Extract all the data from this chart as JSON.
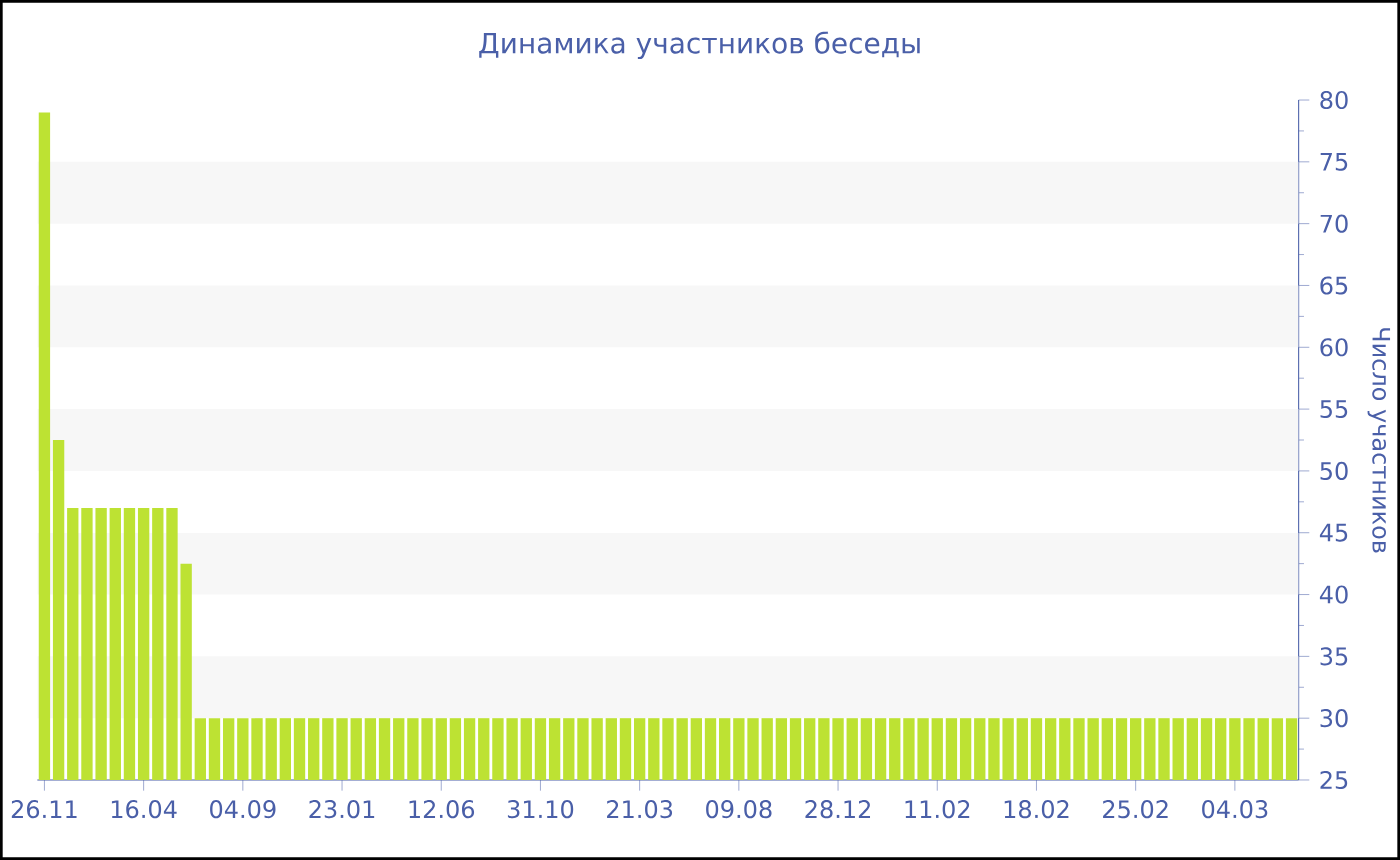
{
  "chart_data": {
    "type": "bar",
    "title": "Динамика участников беседы",
    "ylabel": "Число участников",
    "categories": [
      "26.11",
      null,
      null,
      null,
      null,
      null,
      null,
      "16.04",
      null,
      null,
      null,
      null,
      null,
      null,
      "04.09",
      null,
      null,
      null,
      null,
      null,
      null,
      "23.01",
      null,
      null,
      null,
      null,
      null,
      null,
      "12.06",
      null,
      null,
      null,
      null,
      null,
      null,
      "31.10",
      null,
      null,
      null,
      null,
      null,
      null,
      "21.03",
      null,
      null,
      null,
      null,
      null,
      null,
      "09.08",
      null,
      null,
      null,
      null,
      null,
      null,
      "28.12",
      null,
      null,
      null,
      null,
      null,
      null,
      "11.02",
      null,
      null,
      null,
      null,
      null,
      null,
      "18.02",
      null,
      null,
      null,
      null,
      null,
      null,
      "25.02",
      null,
      null,
      null,
      null,
      null,
      null,
      "04.03",
      null,
      null,
      null,
      null
    ],
    "values": [
      79,
      52.5,
      47,
      47,
      47,
      47,
      47,
      47,
      47,
      47,
      42.5,
      30,
      30,
      30,
      30,
      30,
      30,
      30,
      30,
      30,
      30,
      30,
      30,
      30,
      30,
      30,
      30,
      30,
      30,
      30,
      30,
      30,
      30,
      30,
      30,
      30,
      30,
      30,
      30,
      30,
      30,
      30,
      30,
      30,
      30,
      30,
      30,
      30,
      30,
      30,
      30,
      30,
      30,
      30,
      30,
      30,
      30,
      30,
      30,
      30,
      30,
      30,
      30,
      30,
      30,
      30,
      30,
      30,
      30,
      30,
      30,
      30,
      30,
      30,
      30,
      30,
      30,
      30,
      30,
      30,
      30,
      30,
      30,
      30,
      30,
      30,
      30,
      30,
      30
    ],
    "color": "#bde233",
    "ylim": [
      25,
      80
    ],
    "yticks": [
      25,
      30,
      35,
      40,
      45,
      50,
      55,
      60,
      65,
      70,
      75,
      80
    ],
    "bands": [
      {
        "axis": "y",
        "from": 30,
        "to": 35,
        "color": "#f7f7f7"
      },
      {
        "axis": "y",
        "from": 40,
        "to": 45,
        "color": "#f7f7f7"
      },
      {
        "axis": "y",
        "from": 50,
        "to": 55,
        "color": "#f7f7f7"
      },
      {
        "axis": "y",
        "from": 60,
        "to": 65,
        "color": "#f7f7f7"
      },
      {
        "axis": "y",
        "from": 70,
        "to": 75,
        "color": "#f7f7f7"
      }
    ]
  }
}
